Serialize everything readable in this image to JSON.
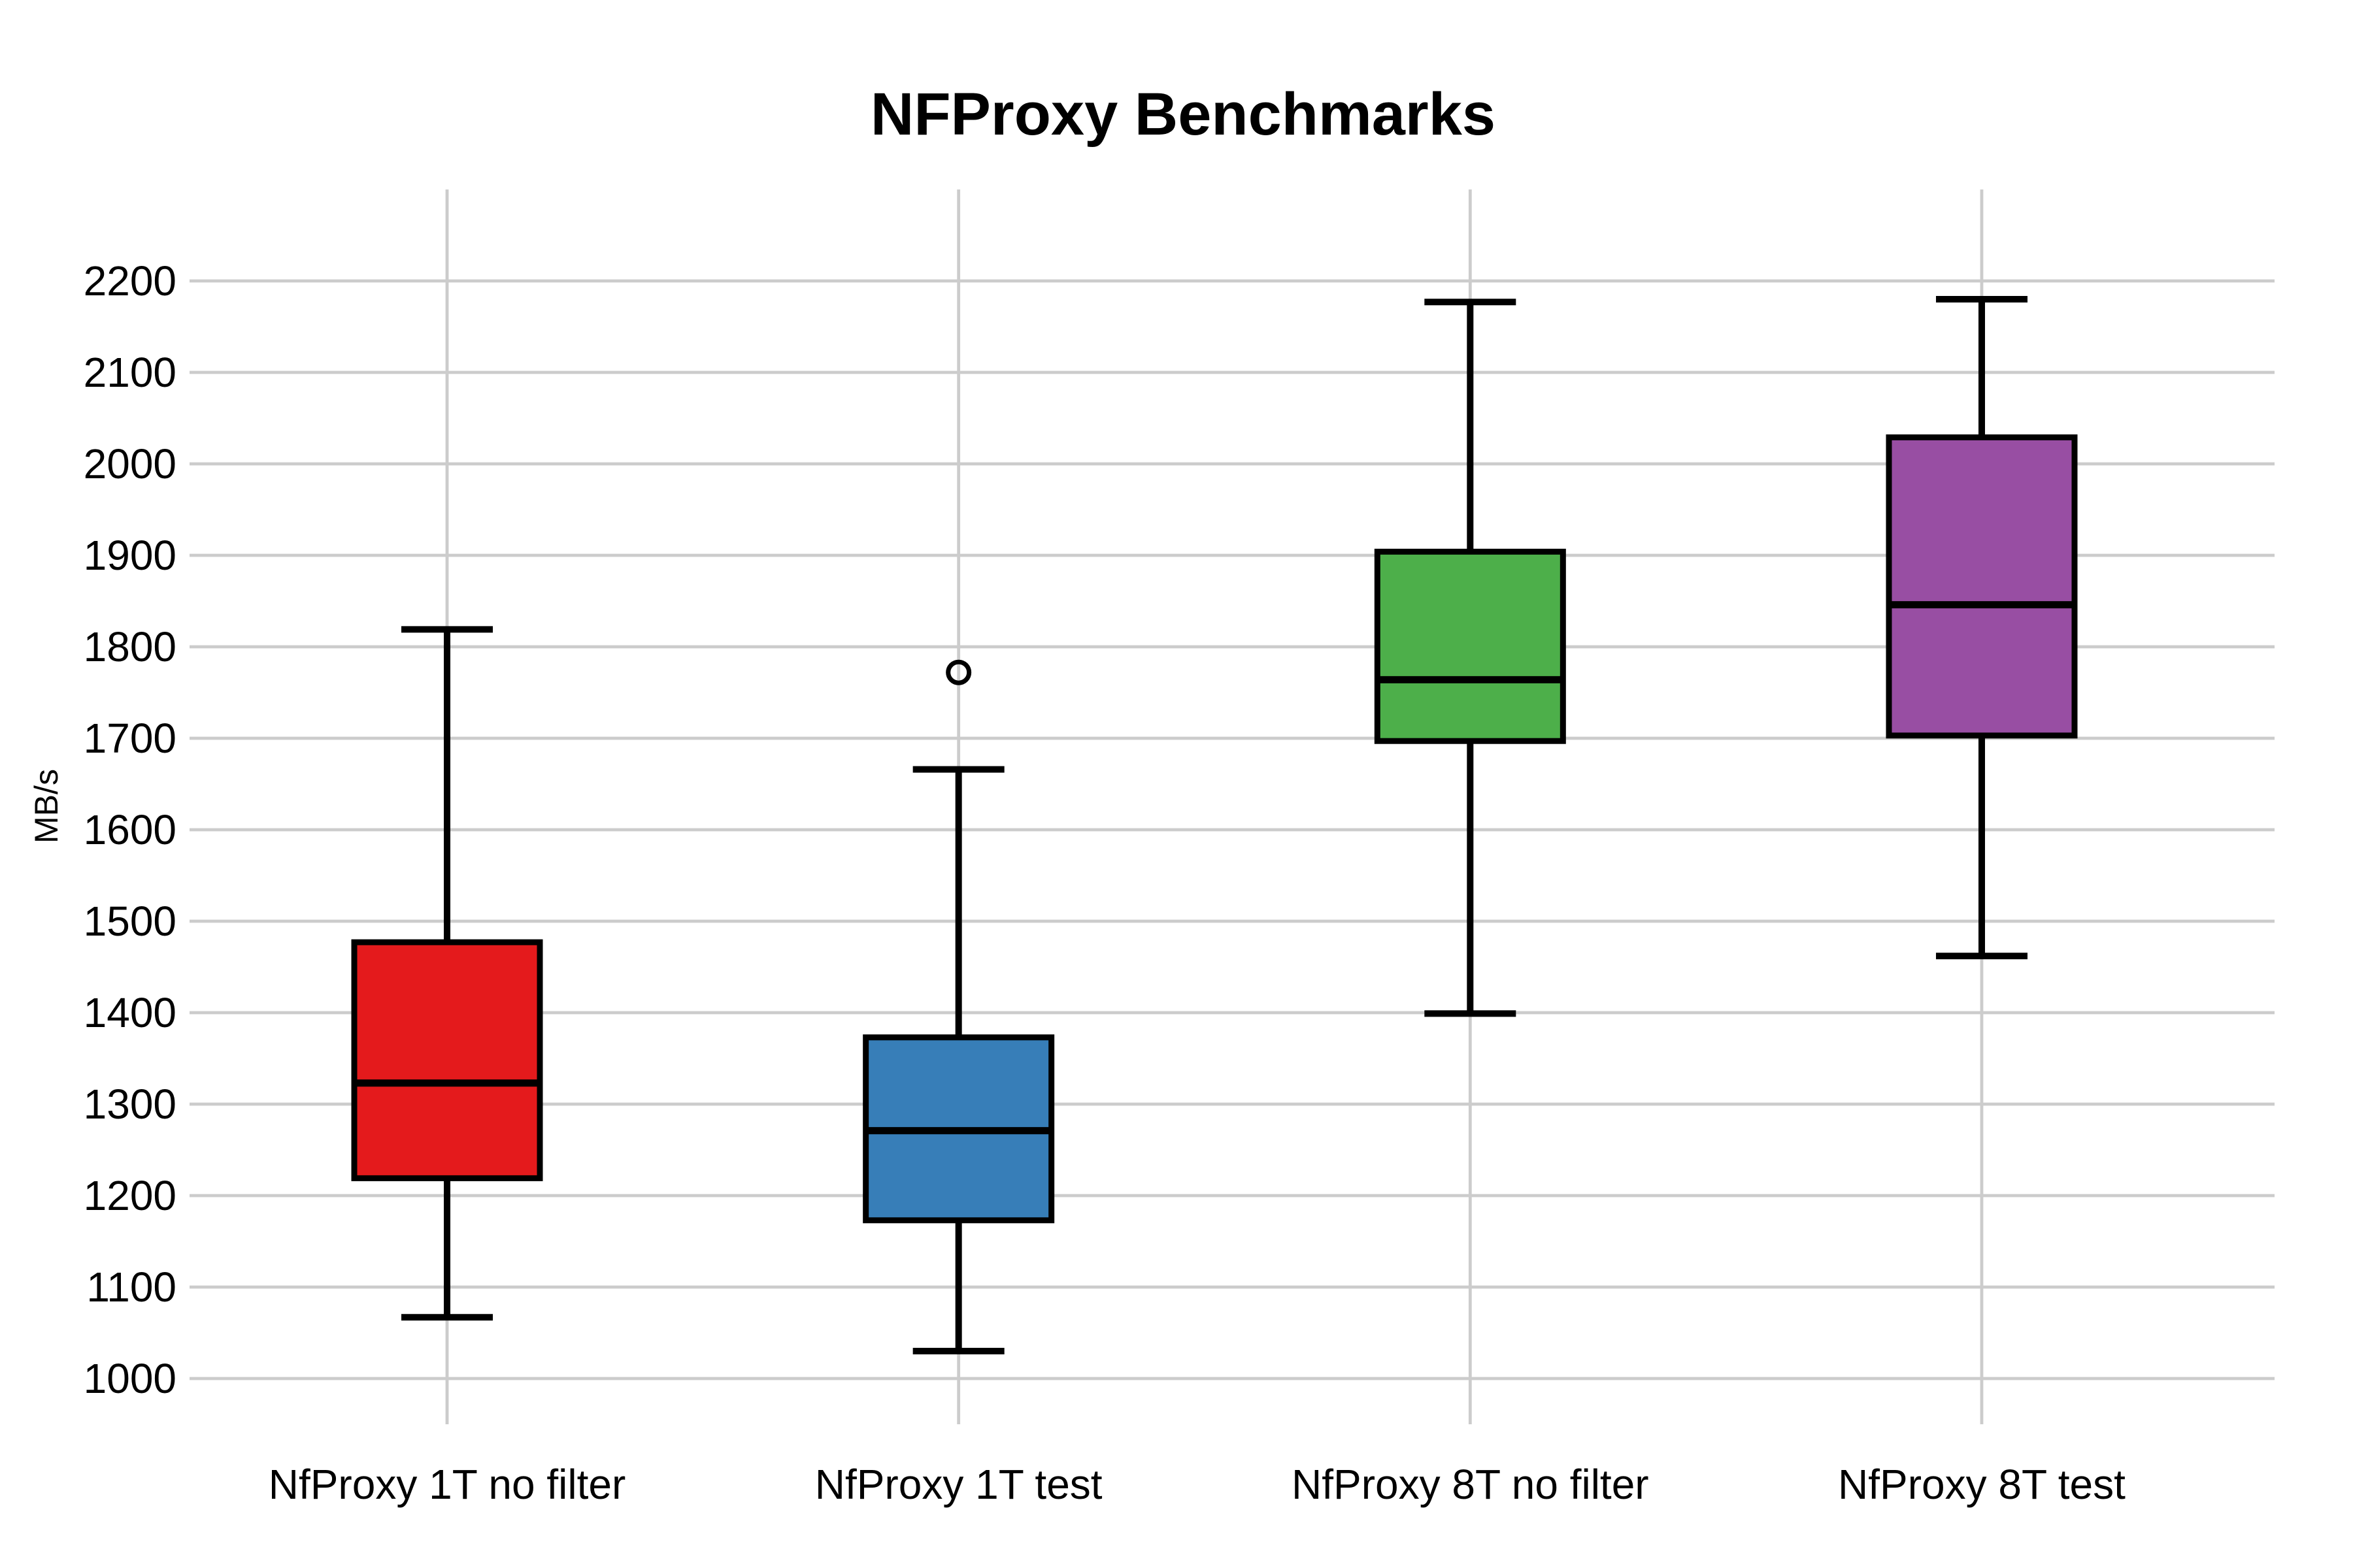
{
  "chart_data": {
    "type": "box",
    "title": "NFProxy Benchmarks",
    "ylabel": "MB/s",
    "xlabel": "",
    "grid": true,
    "legend": "none",
    "background": "#ffffff",
    "gridline_color": "#cccccc",
    "box_edge_color": "#000000",
    "ylim": [
      950,
      2300
    ],
    "yticks": [
      1000,
      1100,
      1200,
      1300,
      1400,
      1500,
      1600,
      1700,
      1800,
      1900,
      2000,
      2100,
      2200
    ],
    "categories": [
      "NfProxy 1T no filter",
      "NfProxy 1T test",
      "NfProxy 8T no filter",
      "NfProxy 8T test"
    ],
    "series": [
      {
        "name": "NfProxy 1T no filter",
        "color": "#e41a1c",
        "whisker_low": 1067,
        "q1": 1219,
        "median": 1323,
        "q3": 1477,
        "whisker_high": 1819,
        "outliers": []
      },
      {
        "name": "NfProxy 1T test",
        "color": "#377eb8",
        "whisker_low": 1030,
        "q1": 1173,
        "median": 1271,
        "q3": 1373,
        "whisker_high": 1666,
        "outliers": [
          1772
        ]
      },
      {
        "name": "NfProxy 8T no filter",
        "color": "#4daf4a",
        "whisker_low": 1399,
        "q1": 1697,
        "median": 1764,
        "q3": 1904,
        "whisker_high": 2177,
        "outliers": []
      },
      {
        "name": "NfProxy 8T test",
        "color": "#984ea3",
        "whisker_low": 1462,
        "q1": 1703,
        "median": 1846,
        "q3": 2029,
        "whisker_high": 2180,
        "outliers": []
      }
    ]
  }
}
